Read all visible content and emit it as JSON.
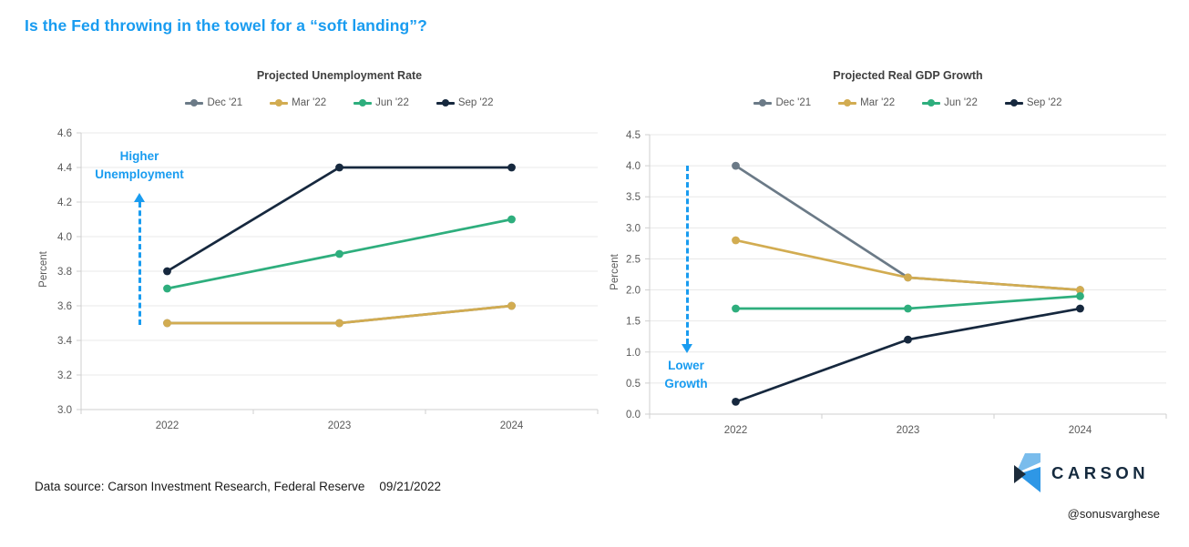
{
  "title": "Is the Fed throwing in the towel for a “soft landing”?",
  "colors": {
    "title_blue": "#199CF0",
    "annotation_blue": "#199CF0",
    "grid": "#E8E8E8",
    "axis": "#CFCFCF",
    "axis_text": "#595959",
    "chart_title_text": "#3F3F3F",
    "series_gray": "#6B7A87",
    "series_gold": "#D2AC51",
    "series_green": "#2EAE7D",
    "series_navy": "#16283E"
  },
  "chart_data": [
    {
      "type": "line",
      "title": "Projected Unemployment Rate",
      "ylabel": "Percent",
      "ylim": [
        3.0,
        4.6
      ],
      "ystep": 0.2,
      "decimals": 1,
      "grid": true,
      "legend_position": "top",
      "categories": [
        "2022",
        "2023",
        "2024"
      ],
      "series": [
        {
          "name": "Dec '21",
          "color": "#6B7A87",
          "values": [
            3.5,
            3.5,
            3.6
          ]
        },
        {
          "name": "Mar '22",
          "color": "#D2AC51",
          "values": [
            3.5,
            3.5,
            3.6
          ]
        },
        {
          "name": "Jun '22",
          "color": "#2EAE7D",
          "values": [
            3.7,
            3.9,
            4.1
          ]
        },
        {
          "name": "Sep '22",
          "color": "#16283E",
          "values": [
            3.8,
            4.4,
            4.4
          ]
        }
      ],
      "annotation": {
        "lines": [
          "Higher",
          "Unemployment"
        ],
        "direction": "up"
      }
    },
    {
      "type": "line",
      "title": "Projected Real GDP Growth",
      "ylabel": "Percent",
      "ylim": [
        0.0,
        4.5
      ],
      "ystep": 0.5,
      "decimals": 1,
      "grid": true,
      "legend_position": "top",
      "categories": [
        "2022",
        "2023",
        "2024"
      ],
      "series": [
        {
          "name": "Dec '21",
          "color": "#6B7A87",
          "values": [
            4.0,
            2.2,
            2.0
          ]
        },
        {
          "name": "Mar '22",
          "color": "#D2AC51",
          "values": [
            2.8,
            2.2,
            2.0
          ]
        },
        {
          "name": "Jun '22",
          "color": "#2EAE7D",
          "values": [
            1.7,
            1.7,
            1.9
          ]
        },
        {
          "name": "Sep '22",
          "color": "#16283E",
          "values": [
            0.2,
            1.2,
            1.7
          ]
        }
      ],
      "annotation": {
        "lines": [
          "Lower",
          "Growth"
        ],
        "direction": "down"
      }
    }
  ],
  "footer": {
    "data_source": "Data source: Carson Investment Research, Federal Reserve",
    "date": "09/21/2022"
  },
  "branding": {
    "wordmark": "CARSON",
    "handle": "@sonusvarghese",
    "logo_light": "#79BCEC",
    "logo_mid": "#2E97E6",
    "logo_dark": "#1C2B3A"
  }
}
